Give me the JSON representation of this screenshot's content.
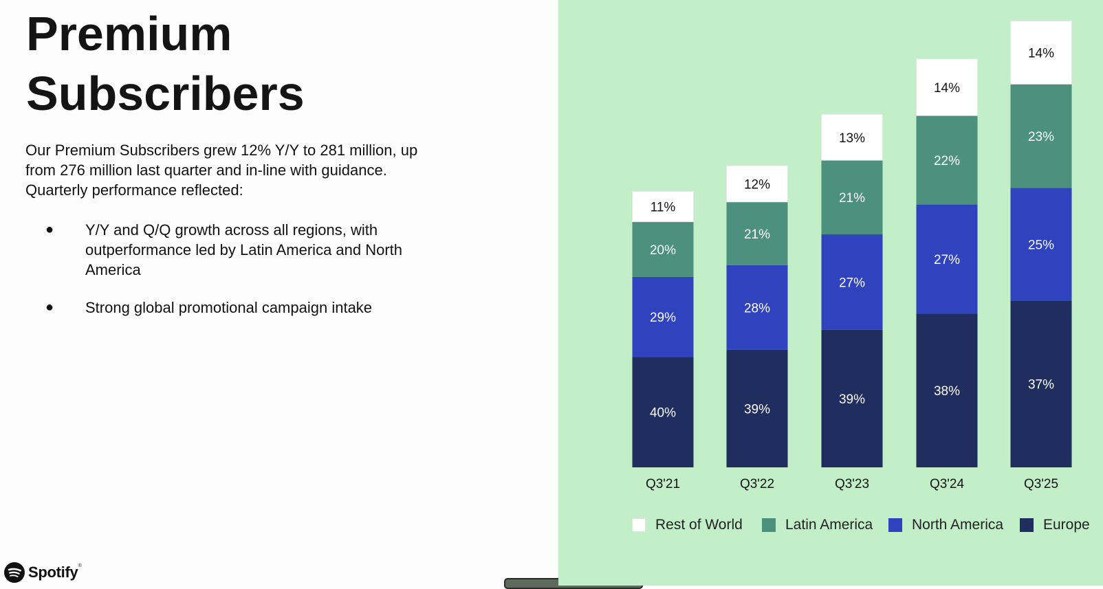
{
  "slide": {
    "title": "Premium\nSubscribers",
    "intro": "Our Premium Subscribers grew 12% Y/Y to 281 million, up from 276 million last quarter and in-line with guidance. Quarterly performance reflected:",
    "bullets": [
      "Y/Y and Q/Q growth across all regions, with outperformance led by Latin America and North America",
      "Strong global promotional campaign intake"
    ],
    "bullet_glyph": "●",
    "brand": "Spotify",
    "brand_mark": "®"
  },
  "colors": {
    "chart_background": "#c2efc8",
    "europe": "#1f2e5e",
    "north_america": "#2e43bd",
    "latin_america": "#4b917d",
    "rest_of_world": "#ffffff",
    "inner_label_dark": "#ffffff",
    "inner_label_light": "#111111"
  },
  "chart_data": {
    "type": "bar",
    "stacked": true,
    "categories": [
      "Q3'21",
      "Q3'22",
      "Q3'23",
      "Q3'24",
      "Q3'25"
    ],
    "series": [
      {
        "name": "Europe",
        "color_key": "europe",
        "values": [
          40,
          39,
          39,
          38,
          37
        ]
      },
      {
        "name": "North America",
        "color_key": "north_america",
        "values": [
          29,
          28,
          27,
          27,
          25
        ]
      },
      {
        "name": "Latin America",
        "color_key": "latin_america",
        "values": [
          20,
          21,
          21,
          22,
          23
        ]
      },
      {
        "name": "Rest of World",
        "color_key": "rest_of_world",
        "values": [
          11,
          12,
          13,
          14,
          14
        ]
      }
    ],
    "relative_subscribers": [
      172,
      188,
      220,
      252,
      281
    ],
    "value_suffix": "%",
    "legend": {
      "position": "bottom",
      "order": [
        "Rest of World",
        "Latin America",
        "North America",
        "Europe"
      ]
    },
    "grid": false,
    "ylim": [
      0,
      281
    ]
  }
}
